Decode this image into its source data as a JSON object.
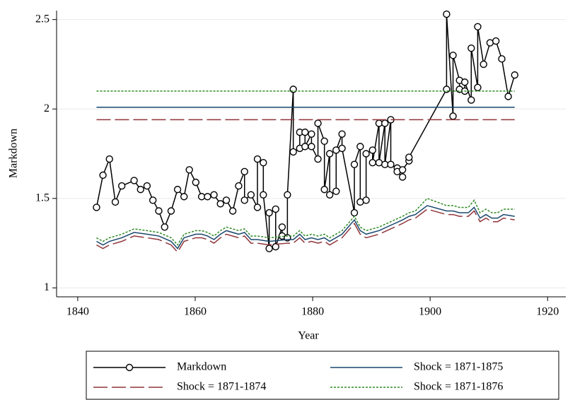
{
  "chart_data": {
    "type": "line",
    "xlabel": "Year",
    "ylabel": "Markdown",
    "xlim": [
      1836.4,
      1923.1
    ],
    "ylim": [
      0.95,
      2.55
    ],
    "xticks": [
      1840,
      1860,
      1880,
      1900,
      1920
    ],
    "yticks": [
      1,
      1.5,
      2,
      2.5
    ],
    "grid": true,
    "legend": "bottom",
    "series": [
      {
        "name": "Markdown",
        "color": "#000000",
        "style": "solid",
        "marker": "circle",
        "x": [
          1843.2,
          1844.3,
          1845.4,
          1846.4,
          1847.5,
          1849.6,
          1850.7,
          1851.8,
          1852.8,
          1853.8,
          1854.8,
          1855.9,
          1857.0,
          1858.1,
          1859.0,
          1860.1,
          1861.1,
          1862.1,
          1863.2,
          1864.3,
          1865.3,
          1866.4,
          1867.4,
          1868.4,
          1868.4,
          1869.5,
          1870.6,
          1870.6,
          1871.6,
          1871.6,
          1872.6,
          1872.6,
          1873.7,
          1873.7,
          1874.8,
          1874.8,
          1875.7,
          1875.7,
          1876.7,
          1876.7,
          1877.8,
          1877.8,
          1878.7,
          1878.7,
          1879.8,
          1879.8,
          1880.9,
          1880.9,
          1882.0,
          1882.0,
          1882.9,
          1882.9,
          1884.0,
          1884.0,
          1885.0,
          1885.0,
          1887.1,
          1887.1,
          1888.1,
          1888.1,
          1889.1,
          1889.1,
          1890.2,
          1890.2,
          1891.3,
          1891.3,
          1892.3,
          1892.3,
          1893.3,
          1893.3,
          1894.4,
          1894.4,
          1895.3,
          1895.3,
          1896.4,
          1896.4,
          1902.8,
          1902.8,
          1903.9,
          1903.9,
          1905.0,
          1905.0,
          1905.9,
          1905.9,
          1907.0,
          1907.0,
          1908.1,
          1908.1,
          1909.1,
          1910.2,
          1911.2,
          1912.2,
          1913.3,
          1914.4
        ],
        "values": [
          1.45,
          1.63,
          1.72,
          1.48,
          1.57,
          1.6,
          1.55,
          1.57,
          1.49,
          1.43,
          1.34,
          1.43,
          1.55,
          1.51,
          1.66,
          1.59,
          1.51,
          1.51,
          1.52,
          1.47,
          1.49,
          1.43,
          1.57,
          1.65,
          1.49,
          1.52,
          1.45,
          1.72,
          1.7,
          1.52,
          1.22,
          1.42,
          1.44,
          1.23,
          1.34,
          1.29,
          1.28,
          1.52,
          2.11,
          1.76,
          1.78,
          1.87,
          1.87,
          1.79,
          1.86,
          1.79,
          1.72,
          1.92,
          1.82,
          1.55,
          1.75,
          1.52,
          1.54,
          1.77,
          1.86,
          1.78,
          1.42,
          1.69,
          1.79,
          1.48,
          1.49,
          1.75,
          1.77,
          1.7,
          1.92,
          1.7,
          1.92,
          1.69,
          1.94,
          1.69,
          1.67,
          1.65,
          1.62,
          1.66,
          1.71,
          1.73,
          2.11,
          2.53,
          1.96,
          2.3,
          2.16,
          2.11,
          2.1,
          2.15,
          2.05,
          2.34,
          2.12,
          2.46,
          2.25,
          2.37,
          2.38,
          2.28,
          2.07,
          2.19
        ]
      },
      {
        "name": "Shock = 1871-1875",
        "color": "#1a476f",
        "style": "solid",
        "level": 2.01,
        "x": [
          1843.2,
          1844.3,
          1845.4,
          1847.5,
          1849.6,
          1851.8,
          1853.8,
          1855.9,
          1857.0,
          1858.1,
          1860.1,
          1861.1,
          1862.1,
          1863.2,
          1864.3,
          1865.3,
          1867.4,
          1868.4,
          1869.5,
          1870.6,
          1872.6,
          1875.7,
          1876.7,
          1877.8,
          1878.7,
          1879.8,
          1880.9,
          1882.0,
          1882.9,
          1885.0,
          1887.1,
          1888.1,
          1889.1,
          1891.3,
          1893.3,
          1895.3,
          1896.4,
          1897.5,
          1899.5,
          1902.8,
          1903.9,
          1905.0,
          1906.5,
          1907.5,
          1908.5,
          1909.5,
          1910.5,
          1911.5,
          1912.5,
          1914.4
        ],
        "values": [
          1.26,
          1.24,
          1.26,
          1.28,
          1.31,
          1.3,
          1.29,
          1.26,
          1.22,
          1.28,
          1.3,
          1.3,
          1.29,
          1.27,
          1.3,
          1.32,
          1.3,
          1.31,
          1.27,
          1.27,
          1.26,
          1.27,
          1.27,
          1.3,
          1.27,
          1.28,
          1.27,
          1.28,
          1.26,
          1.3,
          1.38,
          1.32,
          1.3,
          1.32,
          1.35,
          1.38,
          1.4,
          1.41,
          1.46,
          1.43,
          1.43,
          1.42,
          1.42,
          1.45,
          1.39,
          1.41,
          1.39,
          1.39,
          1.41,
          1.4
        ]
      },
      {
        "name": "Shock = 1871-1874",
        "color": "#90353b",
        "style": "longdash",
        "level": 1.94,
        "x": [
          1843.2,
          1844.3,
          1845.4,
          1847.5,
          1849.6,
          1851.8,
          1853.8,
          1855.9,
          1857.0,
          1858.1,
          1860.1,
          1861.1,
          1862.1,
          1863.2,
          1864.3,
          1865.3,
          1867.4,
          1868.4,
          1869.5,
          1870.6,
          1872.6,
          1875.7,
          1876.7,
          1877.8,
          1878.7,
          1879.8,
          1880.9,
          1882.0,
          1882.9,
          1885.0,
          1887.1,
          1888.1,
          1889.1,
          1891.3,
          1893.3,
          1895.3,
          1896.4,
          1897.5,
          1899.5,
          1902.8,
          1903.9,
          1905.0,
          1906.5,
          1907.5,
          1908.5,
          1909.5,
          1910.5,
          1911.5,
          1912.5,
          1914.4
        ],
        "values": [
          1.24,
          1.22,
          1.24,
          1.26,
          1.29,
          1.28,
          1.27,
          1.24,
          1.2,
          1.26,
          1.28,
          1.28,
          1.27,
          1.25,
          1.28,
          1.3,
          1.28,
          1.29,
          1.25,
          1.25,
          1.24,
          1.25,
          1.25,
          1.28,
          1.25,
          1.26,
          1.25,
          1.26,
          1.24,
          1.28,
          1.36,
          1.3,
          1.28,
          1.3,
          1.33,
          1.36,
          1.38,
          1.39,
          1.44,
          1.41,
          1.41,
          1.4,
          1.4,
          1.43,
          1.37,
          1.39,
          1.37,
          1.37,
          1.39,
          1.38
        ]
      },
      {
        "name": "Shock = 1871-1876",
        "color": "#2f8a22",
        "style": "dot",
        "level": 2.1,
        "x": [
          1843.2,
          1844.3,
          1845.4,
          1847.5,
          1849.6,
          1851.8,
          1853.8,
          1855.9,
          1857.0,
          1858.1,
          1860.1,
          1861.1,
          1862.1,
          1863.2,
          1864.3,
          1865.3,
          1867.4,
          1868.4,
          1869.5,
          1870.6,
          1872.6,
          1875.7,
          1876.7,
          1877.8,
          1878.7,
          1879.8,
          1880.9,
          1882.0,
          1882.9,
          1885.0,
          1887.1,
          1888.1,
          1889.1,
          1891.3,
          1893.3,
          1895.3,
          1896.4,
          1897.5,
          1899.5,
          1902.8,
          1903.9,
          1905.0,
          1906.5,
          1907.5,
          1908.5,
          1909.5,
          1910.5,
          1911.5,
          1912.5,
          1914.4
        ],
        "values": [
          1.28,
          1.26,
          1.28,
          1.3,
          1.33,
          1.32,
          1.31,
          1.28,
          1.24,
          1.3,
          1.32,
          1.32,
          1.31,
          1.29,
          1.32,
          1.34,
          1.32,
          1.33,
          1.29,
          1.29,
          1.28,
          1.29,
          1.29,
          1.32,
          1.29,
          1.3,
          1.29,
          1.3,
          1.28,
          1.32,
          1.4,
          1.34,
          1.32,
          1.34,
          1.37,
          1.4,
          1.42,
          1.43,
          1.5,
          1.46,
          1.46,
          1.45,
          1.45,
          1.49,
          1.42,
          1.44,
          1.42,
          1.42,
          1.44,
          1.44
        ]
      }
    ]
  }
}
